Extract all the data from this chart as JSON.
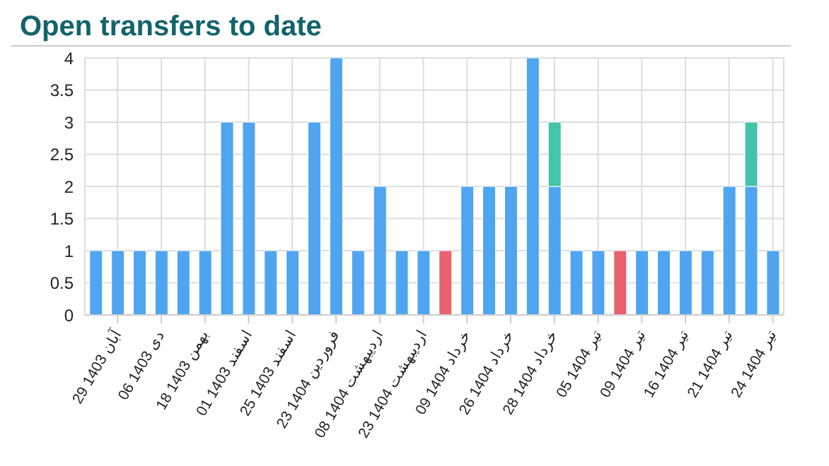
{
  "chart_data": {
    "type": "bar",
    "title": "Open transfers to date",
    "stacked": true,
    "categories": [
      null,
      "29 آبان 1403",
      null,
      "06 دی 1403",
      null,
      "18 بهمن 1403",
      null,
      "01 اسفند 1403",
      null,
      "25 اسفند 1403",
      null,
      "23 فروردین 1404",
      null,
      "08 اردیبهشت 1404",
      null,
      "23 اردیبهشت 1404",
      null,
      "09 خرداد 1404",
      null,
      "26 خرداد 1404",
      null,
      "28 خرداد 1404",
      null,
      "05 تیر 1404",
      null,
      "09 تیر 1404",
      null,
      "16 تیر 1404",
      null,
      "21 تیر 1404",
      null,
      "24 تیر 1404"
    ],
    "series": [
      {
        "color": "#4fa5f0",
        "values": [
          1,
          1,
          1,
          1,
          1,
          1,
          3,
          3,
          1,
          1,
          3,
          4,
          1,
          2,
          1,
          1,
          null,
          2,
          2,
          2,
          4,
          2,
          1,
          1,
          null,
          1,
          1,
          1,
          1,
          2,
          2,
          1
        ]
      },
      {
        "color": "#e9616f",
        "values": [
          null,
          null,
          null,
          null,
          null,
          null,
          null,
          null,
          null,
          null,
          null,
          null,
          null,
          null,
          null,
          null,
          1,
          null,
          null,
          null,
          null,
          null,
          null,
          null,
          1,
          null,
          null,
          null,
          null,
          null,
          null,
          null
        ]
      },
      {
        "color": "#44c4a9",
        "values": [
          null,
          null,
          null,
          null,
          null,
          null,
          null,
          null,
          null,
          null,
          null,
          null,
          null,
          null,
          null,
          null,
          null,
          null,
          null,
          null,
          null,
          1,
          null,
          null,
          null,
          null,
          null,
          null,
          null,
          null,
          1,
          null
        ]
      }
    ],
    "ylim": [
      0,
      4
    ],
    "yticks": [
      0,
      0.5,
      1,
      1.5,
      2,
      2.5,
      3,
      3.5,
      4
    ],
    "grid": true,
    "legend": false
  }
}
